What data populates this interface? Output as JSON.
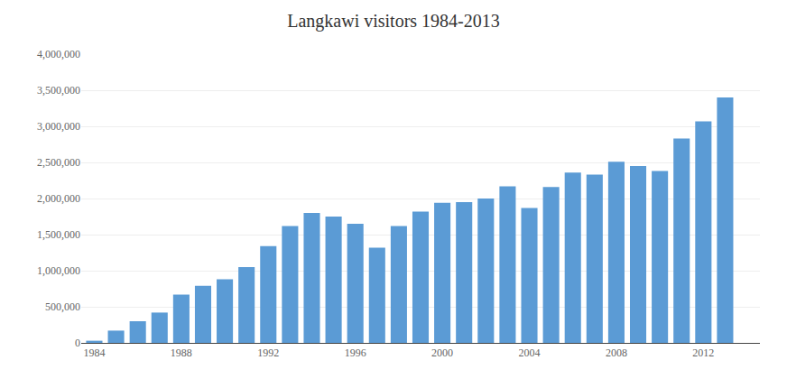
{
  "chart_data": {
    "type": "bar",
    "title": "Langkawi visitors 1984-2013",
    "x": [
      1984,
      1985,
      1986,
      1987,
      1988,
      1989,
      1990,
      1991,
      1992,
      1993,
      1994,
      1995,
      1996,
      1997,
      1998,
      1999,
      2000,
      2001,
      2002,
      2003,
      2004,
      2005,
      2006,
      2007,
      2008,
      2009,
      2010,
      2011,
      2012,
      2013
    ],
    "values": [
      30000,
      170000,
      300000,
      420000,
      670000,
      790000,
      880000,
      1050000,
      1340000,
      1620000,
      1800000,
      1750000,
      1650000,
      1320000,
      1620000,
      1820000,
      1940000,
      1950000,
      2000000,
      2170000,
      1870000,
      2160000,
      2360000,
      2330000,
      2510000,
      2450000,
      2380000,
      2830000,
      3070000,
      3400000
    ],
    "color": "#5b9bd5",
    "xlim": [
      1983.4,
      2014.6
    ],
    "xticks": [
      1984,
      1988,
      1992,
      1996,
      2000,
      2004,
      2008,
      2012
    ],
    "ylim": [
      0,
      4000000
    ],
    "yticks": [
      0,
      {
        "value": 500000,
        "label": "500,000"
      },
      {
        "value": 1000000,
        "label": "1,000,000"
      },
      {
        "value": 1500000,
        "label": "1,500,000"
      },
      {
        "value": 2000000,
        "label": "2,000,000"
      },
      {
        "value": 2500000,
        "label": "2,500,000"
      },
      {
        "value": 3000000,
        "label": "3,000,000"
      },
      {
        "value": 3500000,
        "label": "3,500,000"
      },
      {
        "value": 4000000,
        "label": "4,000,000"
      }
    ],
    "grid": "y"
  }
}
